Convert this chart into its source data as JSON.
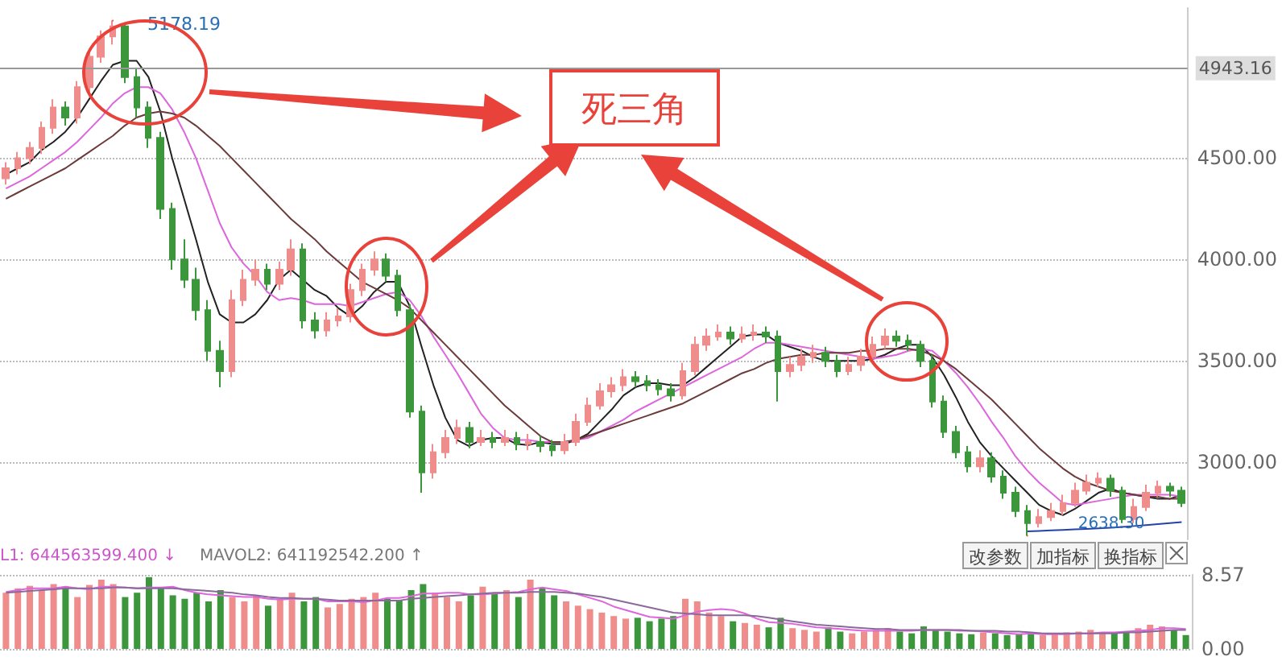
{
  "chart_data": [
    {
      "type": "candlestick",
      "categories": [
        null,
        null,
        null,
        null,
        null,
        null,
        null,
        null,
        null,
        null,
        null,
        null,
        null,
        null,
        null,
        null,
        null,
        null,
        null,
        null,
        null,
        null,
        null,
        null,
        null,
        null,
        null,
        null,
        null,
        null,
        null,
        null,
        null,
        null,
        null,
        null,
        null,
        null,
        null,
        null,
        null,
        null,
        null,
        null,
        null,
        null,
        null,
        null,
        null,
        null,
        null,
        null,
        null,
        null,
        null,
        null,
        null,
        null,
        null,
        null,
        null,
        null,
        null,
        null,
        null,
        null,
        null,
        null,
        null,
        null,
        null,
        null,
        null,
        null,
        null,
        null,
        null,
        null,
        null,
        null,
        null,
        null,
        null,
        null,
        null,
        null,
        null,
        null,
        null,
        null,
        null,
        null,
        null,
        null,
        null,
        null,
        null,
        null,
        null,
        null
      ],
      "colors": [
        "#ef8c8c",
        "#ef8c8c",
        "#ef8c8c",
        "#ef8c8c",
        "#ef8c8c",
        "#3c963c",
        "#ef8c8c",
        "#ef8c8c",
        "#ef8c8c",
        "#ef8c8c",
        "#3c963c",
        "#3c963c",
        "#3c963c",
        "#3c963c",
        "#3c963c",
        "#3c963c",
        "#3c963c",
        "#3c963c",
        "#3c963c",
        "#ef8c8c",
        "#ef8c8c",
        "#ef8c8c",
        "#3c963c",
        "#ef8c8c",
        "#ef8c8c",
        "#3c963c",
        "#3c963c",
        "#ef8c8c",
        "#ef8c8c",
        "#ef8c8c",
        "#ef8c8c",
        "#ef8c8c",
        "#3c963c",
        "#3c963c",
        "#3c963c",
        "#3c963c",
        "#ef8c8c",
        "#ef8c8c",
        "#ef8c8c",
        "#3c963c",
        "#ef8c8c",
        "#3c963c",
        "#ef8c8c",
        "#3c963c",
        "#ef8c8c",
        "#3c963c",
        "#3c963c",
        "#ef8c8c",
        "#ef8c8c",
        "#ef8c8c",
        "#ef8c8c",
        "#ef8c8c",
        "#ef8c8c",
        "#3c963c",
        "#3c963c",
        "#3c963c",
        "#3c963c",
        "#ef8c8c",
        "#ef8c8c",
        "#ef8c8c",
        "#ef8c8c",
        "#3c963c",
        "#ef8c8c",
        "#ef8c8c",
        "#3c963c",
        "#3c963c",
        "#ef8c8c",
        "#ef8c8c",
        "#ef8c8c",
        "#3c963c",
        "#3c963c",
        "#ef8c8c",
        "#ef8c8c",
        "#ef8c8c",
        "#ef8c8c",
        "#3c963c",
        "#3c963c",
        "#3c963c",
        "#3c963c",
        "#3c963c",
        "#3c963c",
        "#3c963c",
        "#ef8c8c",
        "#3c963c",
        "#3c963c",
        "#3c963c",
        "#3c963c",
        "#ef8c8c",
        "#ef8c8c",
        "#ef8c8c",
        "#ef8c8c",
        "#ef8c8c",
        "#ef8c8c",
        "#3c963c",
        "#3c963c",
        "#ef8c8c",
        "#ef8c8c",
        "#ef8c8c",
        "#3c963c",
        "#3c963c"
      ],
      "ohlc": [
        [
          4400,
          4480,
          4370,
          4450
        ],
        [
          4450,
          4530,
          4420,
          4500
        ],
        [
          4500,
          4580,
          4470,
          4550
        ],
        [
          4550,
          4680,
          4520,
          4650
        ],
        [
          4650,
          4790,
          4620,
          4750
        ],
        [
          4750,
          4780,
          4660,
          4700
        ],
        [
          4700,
          4880,
          4670,
          4850
        ],
        [
          4850,
          5040,
          4820,
          5000
        ],
        [
          5000,
          5130,
          4970,
          5100
        ],
        [
          5100,
          5178.19,
          5060,
          5150
        ],
        [
          5150,
          5170,
          4870,
          4900
        ],
        [
          4900,
          4940,
          4700,
          4750
        ],
        [
          4750,
          4780,
          4550,
          4600
        ],
        [
          4600,
          4630,
          4200,
          4250
        ],
        [
          4250,
          4280,
          3950,
          4000
        ],
        [
          4000,
          4100,
          3860,
          3900
        ],
        [
          3900,
          3960,
          3700,
          3750
        ],
        [
          3750,
          3800,
          3500,
          3550
        ],
        [
          3550,
          3600,
          3370,
          3450
        ],
        [
          3450,
          3850,
          3420,
          3800
        ],
        [
          3800,
          3950,
          3770,
          3900
        ],
        [
          3900,
          4000,
          3870,
          3950
        ],
        [
          3950,
          3980,
          3850,
          3880
        ],
        [
          3880,
          3990,
          3850,
          3950
        ],
        [
          3950,
          4100,
          3920,
          4050
        ],
        [
          4050,
          4080,
          3660,
          3700
        ],
        [
          3700,
          3740,
          3610,
          3650
        ],
        [
          3650,
          3740,
          3620,
          3700
        ],
        [
          3700,
          3760,
          3670,
          3720
        ],
        [
          3720,
          3880,
          3690,
          3850
        ],
        [
          3850,
          3980,
          3820,
          3950
        ],
        [
          3950,
          4040,
          3920,
          4000
        ],
        [
          4000,
          4030,
          3890,
          3920
        ],
        [
          3920,
          3950,
          3720,
          3750
        ],
        [
          3750,
          3780,
          3220,
          3250
        ],
        [
          3250,
          3280,
          2850,
          2950
        ],
        [
          2950,
          3090,
          2920,
          3050
        ],
        [
          3050,
          3160,
          3020,
          3120
        ],
        [
          3120,
          3210,
          3090,
          3170
        ],
        [
          3170,
          3200,
          3070,
          3100
        ],
        [
          3100,
          3160,
          3080,
          3120
        ],
        [
          3120,
          3150,
          3070,
          3100
        ],
        [
          3100,
          3160,
          3080,
          3120
        ],
        [
          3120,
          3150,
          3060,
          3090
        ],
        [
          3090,
          3140,
          3060,
          3100
        ],
        [
          3100,
          3130,
          3050,
          3080
        ],
        [
          3080,
          3110,
          3030,
          3060
        ],
        [
          3060,
          3140,
          3040,
          3100
        ],
        [
          3100,
          3240,
          3080,
          3200
        ],
        [
          3200,
          3320,
          3180,
          3280
        ],
        [
          3280,
          3390,
          3260,
          3350
        ],
        [
          3350,
          3420,
          3320,
          3380
        ],
        [
          3380,
          3460,
          3350,
          3420
        ],
        [
          3420,
          3450,
          3370,
          3400
        ],
        [
          3400,
          3430,
          3350,
          3380
        ],
        [
          3380,
          3410,
          3330,
          3360
        ],
        [
          3360,
          3390,
          3300,
          3330
        ],
        [
          3330,
          3490,
          3310,
          3450
        ],
        [
          3450,
          3620,
          3430,
          3580
        ],
        [
          3580,
          3660,
          3550,
          3620
        ],
        [
          3620,
          3680,
          3600,
          3640
        ],
        [
          3640,
          3670,
          3580,
          3610
        ],
        [
          3610,
          3670,
          3590,
          3630
        ],
        [
          3630,
          3680,
          3600,
          3640
        ],
        [
          3640,
          3670,
          3590,
          3620
        ],
        [
          3620,
          3650,
          3300,
          3450
        ],
        [
          3450,
          3520,
          3420,
          3480
        ],
        [
          3480,
          3560,
          3450,
          3520
        ],
        [
          3520,
          3580,
          3490,
          3540
        ],
        [
          3540,
          3570,
          3470,
          3500
        ],
        [
          3500,
          3530,
          3420,
          3450
        ],
        [
          3450,
          3520,
          3430,
          3480
        ],
        [
          3480,
          3560,
          3450,
          3520
        ],
        [
          3520,
          3620,
          3500,
          3580
        ],
        [
          3580,
          3660,
          3560,
          3620
        ],
        [
          3620,
          3650,
          3570,
          3600
        ],
        [
          3600,
          3630,
          3550,
          3580
        ],
        [
          3580,
          3600,
          3470,
          3500
        ],
        [
          3500,
          3530,
          3270,
          3300
        ],
        [
          3300,
          3330,
          3120,
          3150
        ],
        [
          3150,
          3180,
          3020,
          3050
        ],
        [
          3050,
          3080,
          2950,
          2980
        ],
        [
          2980,
          3060,
          2950,
          3020
        ],
        [
          3020,
          3050,
          2900,
          2930
        ],
        [
          2930,
          2960,
          2820,
          2850
        ],
        [
          2850,
          2880,
          2730,
          2760
        ],
        [
          2760,
          2790,
          2638.3,
          2700
        ],
        [
          2700,
          2770,
          2680,
          2730
        ],
        [
          2730,
          2800,
          2710,
          2760
        ],
        [
          2760,
          2840,
          2740,
          2800
        ],
        [
          2800,
          2900,
          2780,
          2860
        ],
        [
          2860,
          2940,
          2840,
          2900
        ],
        [
          2900,
          2950,
          2880,
          2920
        ],
        [
          2920,
          2940,
          2830,
          2860
        ],
        [
          2860,
          2880,
          2700,
          2720
        ],
        [
          2720,
          2820,
          2700,
          2780
        ],
        [
          2780,
          2890,
          2760,
          2850
        ],
        [
          2850,
          2910,
          2830,
          2880
        ],
        [
          2880,
          2900,
          2830,
          2860
        ],
        [
          2860,
          2880,
          2780,
          2800
        ]
      ],
      "series": [
        {
          "type": "line",
          "color": "#222222",
          "values": [
            4420,
            4450,
            4480,
            4540,
            4580,
            4630,
            4700,
            4790,
            4880,
            4960,
            4980,
            4980,
            4900,
            4730,
            4500,
            4300,
            4100,
            3890,
            3730,
            3690,
            3690,
            3730,
            3800,
            3900,
            3950,
            3900,
            3850,
            3820,
            3760,
            3720,
            3770,
            3840,
            3890,
            3890,
            3770,
            3570,
            3380,
            3220,
            3110,
            3080,
            3110,
            3120,
            3120,
            3090,
            3085,
            3100,
            3090,
            3090,
            3110,
            3140,
            3200,
            3260,
            3330,
            3370,
            3390,
            3390,
            3380,
            3380,
            3420,
            3470,
            3520,
            3570,
            3620,
            3630,
            3630,
            3590,
            3570,
            3550,
            3520,
            3500,
            3500,
            3500,
            3500,
            3510,
            3530,
            3560,
            3580,
            3580,
            3520,
            3430,
            3320,
            3200,
            3100,
            3030,
            2970,
            2910,
            2850,
            2790,
            2760,
            2740,
            2770,
            2810,
            2850,
            2870,
            2850,
            2840,
            2830,
            2820,
            2820,
            2840
          ]
        },
        {
          "type": "line",
          "color": "#dd66dd",
          "values": [
            4350,
            4380,
            4410,
            4450,
            4490,
            4530,
            4580,
            4640,
            4700,
            4770,
            4820,
            4850,
            4850,
            4820,
            4740,
            4630,
            4500,
            4340,
            4180,
            4060,
            3980,
            3920,
            3840,
            3800,
            3810,
            3800,
            3780,
            3780,
            3780,
            3770,
            3790,
            3810,
            3830,
            3840,
            3800,
            3720,
            3620,
            3530,
            3440,
            3340,
            3240,
            3170,
            3120,
            3110,
            3110,
            3100,
            3100,
            3100,
            3110,
            3120,
            3150,
            3180,
            3210,
            3250,
            3280,
            3310,
            3340,
            3370,
            3400,
            3430,
            3460,
            3490,
            3520,
            3560,
            3590,
            3590,
            3580,
            3570,
            3560,
            3550,
            3540,
            3530,
            3520,
            3510,
            3520,
            3530,
            3550,
            3560,
            3550,
            3500,
            3440,
            3370,
            3290,
            3200,
            3120,
            3030,
            2960,
            2900,
            2850,
            2800,
            2790,
            2800,
            2810,
            2820,
            2830,
            2840,
            2840,
            2840,
            2840,
            2830
          ]
        },
        {
          "type": "line",
          "color": "#6b3b3b",
          "values": [
            4300,
            4330,
            4360,
            4390,
            4420,
            4450,
            4490,
            4530,
            4570,
            4610,
            4660,
            4700,
            4720,
            4730,
            4720,
            4700,
            4660,
            4610,
            4560,
            4500,
            4440,
            4380,
            4320,
            4260,
            4200,
            4150,
            4100,
            4040,
            3990,
            3940,
            3890,
            3860,
            3830,
            3800,
            3760,
            3700,
            3640,
            3580,
            3520,
            3460,
            3400,
            3340,
            3280,
            3230,
            3180,
            3130,
            3100,
            3100,
            3110,
            3130,
            3150,
            3170,
            3190,
            3210,
            3230,
            3250,
            3270,
            3290,
            3320,
            3350,
            3380,
            3410,
            3440,
            3460,
            3490,
            3510,
            3520,
            3530,
            3530,
            3540,
            3540,
            3540,
            3550,
            3550,
            3560,
            3560,
            3560,
            3550,
            3530,
            3500,
            3460,
            3410,
            3360,
            3310,
            3250,
            3190,
            3130,
            3070,
            3020,
            2970,
            2930,
            2900,
            2880,
            2860,
            2850,
            2840,
            2830,
            2830,
            2820,
            2820
          ]
        },
        {
          "type": "line",
          "color": "#2442a8",
          "values": [
            null,
            null,
            null,
            null,
            null,
            null,
            null,
            null,
            null,
            null,
            null,
            null,
            null,
            null,
            null,
            null,
            null,
            null,
            null,
            null,
            null,
            null,
            null,
            null,
            null,
            null,
            null,
            null,
            null,
            null,
            null,
            null,
            null,
            null,
            null,
            null,
            null,
            null,
            null,
            null,
            null,
            null,
            null,
            null,
            null,
            null,
            null,
            null,
            null,
            null,
            null,
            null,
            null,
            null,
            null,
            null,
            null,
            null,
            null,
            null,
            null,
            null,
            null,
            null,
            null,
            null,
            null,
            null,
            null,
            null,
            null,
            null,
            null,
            null,
            null,
            null,
            null,
            null,
            null,
            null,
            null,
            null,
            null,
            null,
            null,
            null,
            2660,
            2662,
            2665,
            2667,
            2670,
            2672,
            2675,
            2678,
            2682,
            2686,
            2690,
            2695,
            2700,
            2705
          ]
        }
      ],
      "ylim": [
        2620,
        5240
      ],
      "yticks": [
        {
          "value": 3000,
          "label": "3000.00"
        },
        {
          "value": 3500,
          "label": "3500.00"
        },
        {
          "value": 4000,
          "label": "4000.00"
        },
        {
          "value": 4500,
          "label": "4500.00"
        }
      ],
      "grid": "y",
      "tick_labels": "y",
      "ref_lines": [
        {
          "axis": "y",
          "value": 4943.16,
          "label": "4943.16",
          "color": "#999999"
        }
      ],
      "annotations": [
        "死三角",
        "5178.19",
        "2638.30"
      ]
    },
    {
      "type": "bar",
      "categories": [
        null,
        null,
        null,
        null,
        null,
        null,
        null,
        null,
        null,
        null,
        null,
        null,
        null,
        null,
        null,
        null,
        null,
        null,
        null,
        null,
        null,
        null,
        null,
        null,
        null,
        null,
        null,
        null,
        null,
        null,
        null,
        null,
        null,
        null,
        null,
        null,
        null,
        null,
        null,
        null,
        null,
        null,
        null,
        null,
        null,
        null,
        null,
        null,
        null,
        null,
        null,
        null,
        null,
        null,
        null,
        null,
        null,
        null,
        null,
        null,
        null,
        null,
        null,
        null,
        null,
        null,
        null,
        null,
        null,
        null,
        null,
        null,
        null,
        null,
        null,
        null,
        null,
        null,
        null,
        null,
        null,
        null,
        null,
        null,
        null,
        null,
        null,
        null,
        null,
        null,
        null,
        null,
        null,
        null,
        null,
        null,
        null,
        null,
        null,
        null
      ],
      "series": [
        {
          "type": "bar",
          "values": [
            6.5,
            7.0,
            7.3,
            6.8,
            7.5,
            7.2,
            6.0,
            7.4,
            8.0,
            7.5,
            6.0,
            6.5,
            8.3,
            7.0,
            6.2,
            5.8,
            6.5,
            5.5,
            6.8,
            6.0,
            5.5,
            6.2,
            5.0,
            5.8,
            6.5,
            5.5,
            6.0,
            4.8,
            5.2,
            5.8,
            6.0,
            6.5,
            5.8,
            5.6,
            6.8,
            7.5,
            6.5,
            6.0,
            5.5,
            6.2,
            7.2,
            6.5,
            6.8,
            6.0,
            8.0,
            7.0,
            6.2,
            5.5,
            5.0,
            4.6,
            4.2,
            3.8,
            3.5,
            3.6,
            3.2,
            3.5,
            3.8,
            5.8,
            5.5,
            4.2,
            3.8,
            3.2,
            3.0,
            2.8,
            2.5,
            3.6,
            2.4,
            2.2,
            2.0,
            2.5,
            2.0,
            1.8,
            2.0,
            2.2,
            2.4,
            2.0,
            1.8,
            2.6,
            2.2,
            2.0,
            1.8,
            1.7,
            1.9,
            1.8,
            1.6,
            1.7,
            1.8,
            1.6,
            1.7,
            1.9,
            2.0,
            2.2,
            1.8,
            1.9,
            2.0,
            2.4,
            2.8,
            2.6,
            2.2,
            1.6
          ],
          "colors": [
            "#ef8c8c",
            "#ef8c8c",
            "#ef8c8c",
            "#ef8c8c",
            "#ef8c8c",
            "#3c963c",
            "#ef8c8c",
            "#ef8c8c",
            "#ef8c8c",
            "#ef8c8c",
            "#3c963c",
            "#3c963c",
            "#3c963c",
            "#3c963c",
            "#3c963c",
            "#3c963c",
            "#3c963c",
            "#3c963c",
            "#3c963c",
            "#ef8c8c",
            "#ef8c8c",
            "#ef8c8c",
            "#3c963c",
            "#ef8c8c",
            "#ef8c8c",
            "#3c963c",
            "#3c963c",
            "#ef8c8c",
            "#ef8c8c",
            "#ef8c8c",
            "#ef8c8c",
            "#ef8c8c",
            "#3c963c",
            "#3c963c",
            "#3c963c",
            "#3c963c",
            "#ef8c8c",
            "#ef8c8c",
            "#ef8c8c",
            "#3c963c",
            "#ef8c8c",
            "#3c963c",
            "#ef8c8c",
            "#3c963c",
            "#ef8c8c",
            "#3c963c",
            "#3c963c",
            "#ef8c8c",
            "#ef8c8c",
            "#ef8c8c",
            "#ef8c8c",
            "#ef8c8c",
            "#ef8c8c",
            "#3c963c",
            "#3c963c",
            "#3c963c",
            "#3c963c",
            "#ef8c8c",
            "#ef8c8c",
            "#ef8c8c",
            "#ef8c8c",
            "#3c963c",
            "#ef8c8c",
            "#ef8c8c",
            "#3c963c",
            "#3c963c",
            "#ef8c8c",
            "#ef8c8c",
            "#ef8c8c",
            "#3c963c",
            "#3c963c",
            "#ef8c8c",
            "#ef8c8c",
            "#ef8c8c",
            "#ef8c8c",
            "#3c963c",
            "#3c963c",
            "#3c963c",
            "#3c963c",
            "#3c963c",
            "#3c963c",
            "#3c963c",
            "#ef8c8c",
            "#3c963c",
            "#3c963c",
            "#3c963c",
            "#3c963c",
            "#ef8c8c",
            "#ef8c8c",
            "#ef8c8c",
            "#ef8c8c",
            "#ef8c8c",
            "#ef8c8c",
            "#3c963c",
            "#3c963c",
            "#ef8c8c",
            "#ef8c8c",
            "#ef8c8c",
            "#3c963c",
            "#3c963c"
          ]
        },
        {
          "type": "line",
          "color": "#dd66dd",
          "values": [
            6.6,
            6.8,
            7.0,
            7.0,
            7.0,
            7.2,
            7.0,
            6.9,
            7.2,
            7.2,
            7.1,
            7.0,
            7.1,
            7.1,
            7.2,
            6.8,
            6.5,
            6.3,
            6.2,
            6.1,
            6.0,
            6.0,
            5.8,
            5.7,
            5.8,
            5.8,
            5.8,
            5.5,
            5.5,
            5.5,
            5.4,
            5.6,
            5.9,
            5.9,
            6.1,
            6.4,
            6.4,
            6.5,
            6.5,
            6.3,
            6.3,
            6.4,
            6.5,
            6.6,
            6.9,
            7.1,
            6.9,
            6.7,
            6.3,
            5.9,
            5.5,
            4.9,
            4.5,
            4.1,
            3.7,
            3.6,
            3.5,
            3.9,
            4.3,
            4.5,
            4.6,
            4.5,
            4.1,
            3.5,
            3.1,
            3.0,
            2.9,
            2.7,
            2.5,
            2.4,
            2.3,
            2.2,
            2.1,
            2.1,
            2.1,
            2.1,
            2.1,
            2.2,
            2.2,
            2.2,
            2.1,
            2.1,
            2.0,
            1.9,
            1.8,
            1.7,
            1.8,
            1.7,
            1.7,
            1.7,
            1.8,
            1.8,
            1.9,
            1.9,
            2.0,
            2.1,
            2.2,
            2.4,
            2.4,
            2.3
          ]
        },
        {
          "type": "line",
          "color": "#8a6a9a",
          "values": [
            6.5,
            6.6,
            6.7,
            6.8,
            6.9,
            7.0,
            7.0,
            7.0,
            7.0,
            7.1,
            7.1,
            7.0,
            7.0,
            7.0,
            7.0,
            6.9,
            6.8,
            6.7,
            6.6,
            6.5,
            6.3,
            6.2,
            6.0,
            5.9,
            5.9,
            5.8,
            5.8,
            5.7,
            5.6,
            5.6,
            5.6,
            5.6,
            5.6,
            5.6,
            5.8,
            5.9,
            6.0,
            6.1,
            6.2,
            6.3,
            6.4,
            6.5,
            6.5,
            6.5,
            6.6,
            6.6,
            6.6,
            6.5,
            6.4,
            6.2,
            6.0,
            5.7,
            5.4,
            5.1,
            4.8,
            4.5,
            4.2,
            4.1,
            4.0,
            3.9,
            3.9,
            3.9,
            3.9,
            3.8,
            3.6,
            3.4,
            3.2,
            3.0,
            2.8,
            2.7,
            2.6,
            2.5,
            2.4,
            2.3,
            2.3,
            2.2,
            2.2,
            2.2,
            2.2,
            2.2,
            2.2,
            2.1,
            2.1,
            2.1,
            2.0,
            2.0,
            1.9,
            1.8,
            1.8,
            1.8,
            1.8,
            1.8,
            1.8,
            1.8,
            1.9,
            1.9,
            2.0,
            2.1,
            2.2,
            2.2
          ]
        }
      ],
      "ylim": [
        0,
        8.57
      ],
      "yticks": [
        {
          "value": 0,
          "label": "0.00"
        },
        {
          "value": 8.57,
          "label": "8.57"
        }
      ],
      "grid": "y",
      "tick_labels": "y",
      "annotations": [
        "L1: 644563599.400 ↓",
        "MAVOL2: 641192542.200 ↑",
        "改参数",
        "加指标",
        "换指标"
      ]
    }
  ]
}
